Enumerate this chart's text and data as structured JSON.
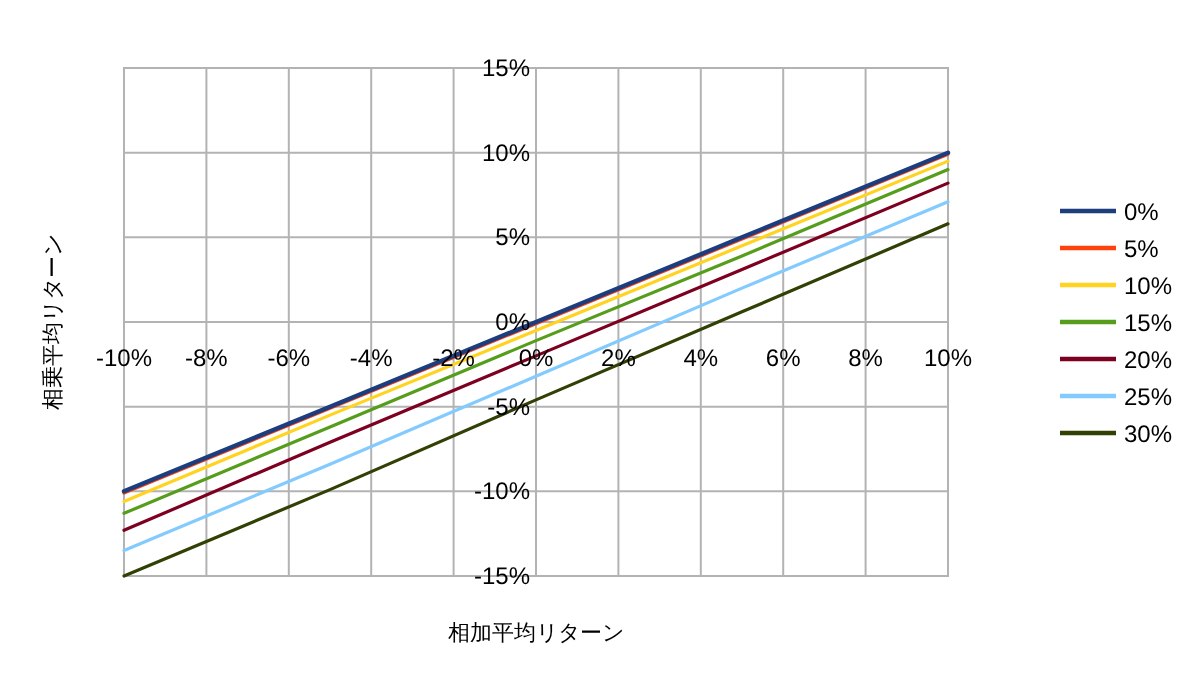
{
  "chart_data": {
    "type": "line",
    "xlabel": "相加平均リターン",
    "ylabel": "相乗平均リターン",
    "x": [
      -10,
      -5,
      0,
      5,
      10
    ],
    "series": [
      {
        "name": "0%",
        "color": "#1c3d7e",
        "values": [
          -10,
          -5,
          0,
          5,
          10
        ]
      },
      {
        "name": "5%",
        "color": "#ff420e",
        "values": [
          -10.1,
          -5.1,
          -0.1,
          4.9,
          9.9
        ]
      },
      {
        "name": "10%",
        "color": "#ffd320",
        "values": [
          -10.6,
          -5.5,
          -0.5,
          4.5,
          9.5
        ]
      },
      {
        "name": "15%",
        "color": "#579d1c",
        "values": [
          -11.3,
          -6.2,
          -1.1,
          3.9,
          9.0
        ]
      },
      {
        "name": "20%",
        "color": "#7e0021",
        "values": [
          -12.3,
          -7.1,
          -2.0,
          3.1,
          8.2
        ]
      },
      {
        "name": "25%",
        "color": "#83caff",
        "values": [
          -13.5,
          -8.4,
          -3.2,
          2.0,
          7.1
        ]
      },
      {
        "name": "30%",
        "color": "#314004",
        "values": [
          -15.0,
          -9.9,
          -4.6,
          0.6,
          5.8
        ]
      }
    ],
    "xlim": [
      -10,
      10
    ],
    "ylim": [
      -15,
      15
    ],
    "xticks": [
      {
        "value": -10,
        "label": "-10%"
      },
      {
        "value": -8,
        "label": "-8%"
      },
      {
        "value": -6,
        "label": "-6%"
      },
      {
        "value": -4,
        "label": "-4%"
      },
      {
        "value": -2,
        "label": "-2%"
      },
      {
        "value": 0,
        "label": "0%"
      },
      {
        "value": 2,
        "label": "2%"
      },
      {
        "value": 4,
        "label": "4%"
      },
      {
        "value": 6,
        "label": "6%"
      },
      {
        "value": 8,
        "label": "8%"
      },
      {
        "value": 10,
        "label": "10%"
      }
    ],
    "yticks": [
      {
        "value": -15,
        "label": "-15%"
      },
      {
        "value": -10,
        "label": "-10%"
      },
      {
        "value": -5,
        "label": "-5%"
      },
      {
        "value": 0,
        "label": "0%"
      },
      {
        "value": 5,
        "label": "5%"
      },
      {
        "value": 10,
        "label": "10%"
      },
      {
        "value": 15,
        "label": "15%"
      }
    ],
    "grid": true,
    "legend": "right",
    "line_style": "solid"
  }
}
